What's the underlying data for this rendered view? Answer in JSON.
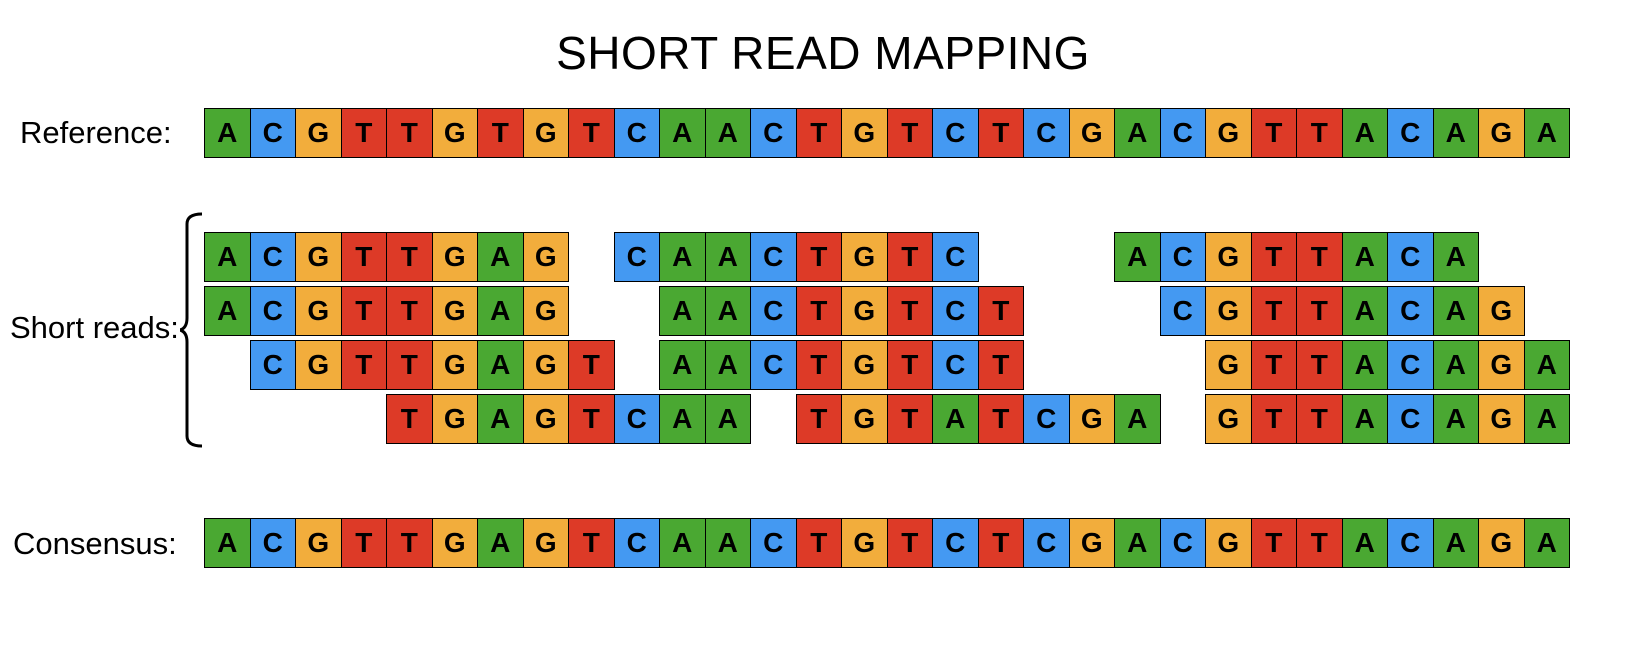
{
  "title": "SHORT READ MAPPING",
  "labels": {
    "reference": "Reference:",
    "short_reads": "Short reads:",
    "consensus": "Consensus:"
  },
  "colors": {
    "A": "#4aa832",
    "C": "#4499f2",
    "G": "#f2ad3c",
    "T": "#dd3a27"
  },
  "reference": "ACGTTGTGTCAACTGTCTCGACGTTACAGA",
  "reads": [
    {
      "seq": "ACGTTGAG",
      "offset": 0,
      "row": 0
    },
    {
      "seq": "CAACTGTC",
      "offset": 9,
      "row": 0
    },
    {
      "seq": "ACGTTACA",
      "offset": 20,
      "row": 0
    },
    {
      "seq": "ACGTTGAG",
      "offset": 0,
      "row": 1
    },
    {
      "seq": "AACTGTCT",
      "offset": 10,
      "row": 1
    },
    {
      "seq": "CGTTACAG",
      "offset": 21,
      "row": 1
    },
    {
      "seq": "CGTTGAGT",
      "offset": 1,
      "row": 2
    },
    {
      "seq": "AACTGTCT",
      "offset": 10,
      "row": 2
    },
    {
      "seq": "GTTACAGA",
      "offset": 22,
      "row": 2
    },
    {
      "seq": "TGAGTCAA",
      "offset": 4,
      "row": 3
    },
    {
      "seq": "TGTATCGA",
      "offset": 13,
      "row": 3
    },
    {
      "seq": "GTTACAGA",
      "offset": 22,
      "row": 3
    }
  ],
  "consensus": "ACGTTGAGTCAACTGTCTCGACGTTACAGA"
}
